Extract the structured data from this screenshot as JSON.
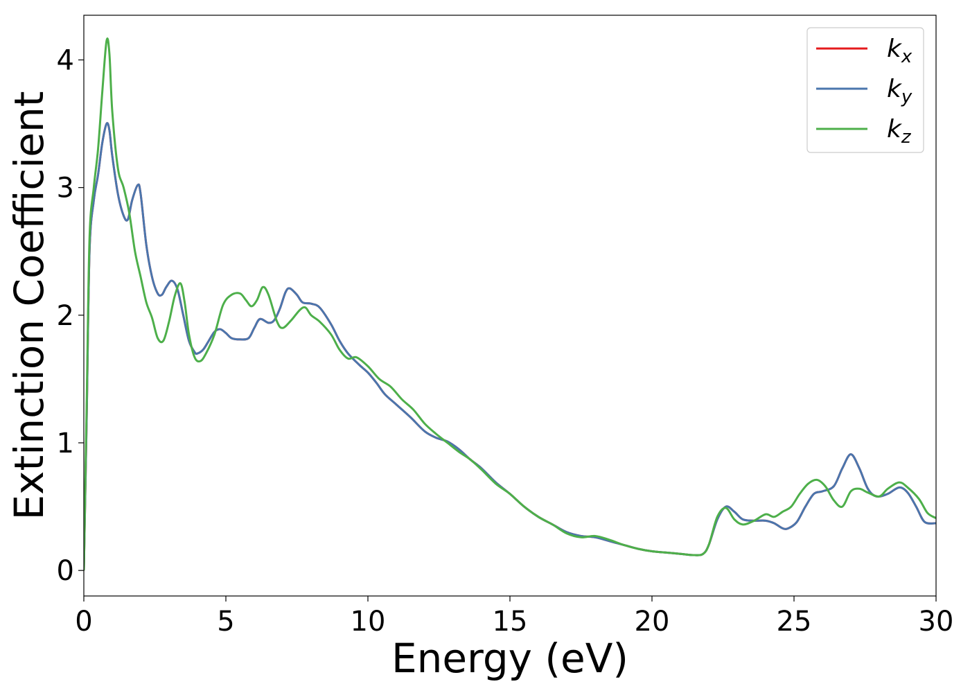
{
  "chart_data": {
    "type": "line",
    "title": "",
    "xlabel": "Energy (eV)",
    "ylabel": "Extinction Coefficient",
    "xlim": [
      0,
      30
    ],
    "ylim": [
      -0.2,
      4.35
    ],
    "xticks": [
      0,
      5,
      10,
      15,
      20,
      25,
      30
    ],
    "yticks": [
      0,
      1,
      2,
      3,
      4
    ],
    "grid": false,
    "legend_position": "top-right",
    "series": [
      {
        "name": "k",
        "subscript": "x",
        "color": "#e41a1c",
        "points": [
          [
            0,
            0
          ],
          [
            0.1,
            1.2
          ],
          [
            0.2,
            2.5
          ],
          [
            0.35,
            2.9
          ],
          [
            0.5,
            3.1
          ],
          [
            0.65,
            3.35
          ],
          [
            0.8,
            3.5
          ],
          [
            0.9,
            3.45
          ],
          [
            1.0,
            3.25
          ],
          [
            1.2,
            2.95
          ],
          [
            1.4,
            2.78
          ],
          [
            1.55,
            2.75
          ],
          [
            1.7,
            2.9
          ],
          [
            1.9,
            3.02
          ],
          [
            2.0,
            2.95
          ],
          [
            2.2,
            2.55
          ],
          [
            2.4,
            2.3
          ],
          [
            2.6,
            2.17
          ],
          [
            2.75,
            2.16
          ],
          [
            2.9,
            2.22
          ],
          [
            3.1,
            2.27
          ],
          [
            3.3,
            2.2
          ],
          [
            3.5,
            2.0
          ],
          [
            3.7,
            1.8
          ],
          [
            3.9,
            1.71
          ],
          [
            4.0,
            1.7
          ],
          [
            4.2,
            1.73
          ],
          [
            4.4,
            1.8
          ],
          [
            4.6,
            1.87
          ],
          [
            4.8,
            1.89
          ],
          [
            5.0,
            1.86
          ],
          [
            5.2,
            1.82
          ],
          [
            5.5,
            1.81
          ],
          [
            5.8,
            1.82
          ],
          [
            6.0,
            1.9
          ],
          [
            6.2,
            1.97
          ],
          [
            6.5,
            1.94
          ],
          [
            6.7,
            1.96
          ],
          [
            6.9,
            2.05
          ],
          [
            7.1,
            2.18
          ],
          [
            7.25,
            2.21
          ],
          [
            7.5,
            2.16
          ],
          [
            7.7,
            2.1
          ],
          [
            8.0,
            2.09
          ],
          [
            8.3,
            2.06
          ],
          [
            8.7,
            1.93
          ],
          [
            9.0,
            1.8
          ],
          [
            9.3,
            1.7
          ],
          [
            9.7,
            1.61
          ],
          [
            10.0,
            1.55
          ],
          [
            10.3,
            1.47
          ],
          [
            10.6,
            1.38
          ],
          [
            11.0,
            1.3
          ],
          [
            11.5,
            1.2
          ],
          [
            12.0,
            1.09
          ],
          [
            12.4,
            1.04
          ],
          [
            12.8,
            1.01
          ],
          [
            13.2,
            0.95
          ],
          [
            13.6,
            0.87
          ],
          [
            14.0,
            0.8
          ],
          [
            14.5,
            0.69
          ],
          [
            15.0,
            0.6
          ],
          [
            15.5,
            0.5
          ],
          [
            16.0,
            0.42
          ],
          [
            16.5,
            0.36
          ],
          [
            17.0,
            0.3
          ],
          [
            17.5,
            0.27
          ],
          [
            18.0,
            0.26
          ],
          [
            18.5,
            0.23
          ],
          [
            19.0,
            0.2
          ],
          [
            19.5,
            0.17
          ],
          [
            20.0,
            0.15
          ],
          [
            20.5,
            0.14
          ],
          [
            21.0,
            0.13
          ],
          [
            21.5,
            0.12
          ],
          [
            21.8,
            0.13
          ],
          [
            22.0,
            0.2
          ],
          [
            22.3,
            0.4
          ],
          [
            22.6,
            0.5
          ],
          [
            22.9,
            0.46
          ],
          [
            23.2,
            0.4
          ],
          [
            23.6,
            0.39
          ],
          [
            24.0,
            0.39
          ],
          [
            24.3,
            0.37
          ],
          [
            24.6,
            0.33
          ],
          [
            24.8,
            0.33
          ],
          [
            25.1,
            0.38
          ],
          [
            25.4,
            0.5
          ],
          [
            25.7,
            0.6
          ],
          [
            26.0,
            0.62
          ],
          [
            26.4,
            0.66
          ],
          [
            26.7,
            0.8
          ],
          [
            27.0,
            0.91
          ],
          [
            27.3,
            0.8
          ],
          [
            27.6,
            0.64
          ],
          [
            27.9,
            0.58
          ],
          [
            28.3,
            0.6
          ],
          [
            28.7,
            0.65
          ],
          [
            29.0,
            0.61
          ],
          [
            29.3,
            0.5
          ],
          [
            29.6,
            0.38
          ],
          [
            30.0,
            0.37
          ]
        ]
      },
      {
        "name": "k",
        "subscript": "y",
        "color": "#4a76ad",
        "points": [
          [
            0,
            0
          ],
          [
            0.1,
            1.2
          ],
          [
            0.2,
            2.5
          ],
          [
            0.35,
            2.9
          ],
          [
            0.5,
            3.1
          ],
          [
            0.65,
            3.35
          ],
          [
            0.8,
            3.5
          ],
          [
            0.9,
            3.45
          ],
          [
            1.0,
            3.25
          ],
          [
            1.2,
            2.95
          ],
          [
            1.4,
            2.78
          ],
          [
            1.55,
            2.75
          ],
          [
            1.7,
            2.9
          ],
          [
            1.9,
            3.02
          ],
          [
            2.0,
            2.95
          ],
          [
            2.2,
            2.55
          ],
          [
            2.4,
            2.3
          ],
          [
            2.6,
            2.17
          ],
          [
            2.75,
            2.16
          ],
          [
            2.9,
            2.22
          ],
          [
            3.1,
            2.27
          ],
          [
            3.3,
            2.2
          ],
          [
            3.5,
            2.0
          ],
          [
            3.7,
            1.8
          ],
          [
            3.9,
            1.71
          ],
          [
            4.0,
            1.7
          ],
          [
            4.2,
            1.73
          ],
          [
            4.4,
            1.8
          ],
          [
            4.6,
            1.87
          ],
          [
            4.8,
            1.89
          ],
          [
            5.0,
            1.86
          ],
          [
            5.2,
            1.82
          ],
          [
            5.5,
            1.81
          ],
          [
            5.8,
            1.82
          ],
          [
            6.0,
            1.9
          ],
          [
            6.2,
            1.97
          ],
          [
            6.5,
            1.94
          ],
          [
            6.7,
            1.96
          ],
          [
            6.9,
            2.05
          ],
          [
            7.1,
            2.18
          ],
          [
            7.25,
            2.21
          ],
          [
            7.5,
            2.16
          ],
          [
            7.7,
            2.1
          ],
          [
            8.0,
            2.09
          ],
          [
            8.3,
            2.06
          ],
          [
            8.7,
            1.93
          ],
          [
            9.0,
            1.8
          ],
          [
            9.3,
            1.7
          ],
          [
            9.7,
            1.61
          ],
          [
            10.0,
            1.55
          ],
          [
            10.3,
            1.47
          ],
          [
            10.6,
            1.38
          ],
          [
            11.0,
            1.3
          ],
          [
            11.5,
            1.2
          ],
          [
            12.0,
            1.09
          ],
          [
            12.4,
            1.04
          ],
          [
            12.8,
            1.01
          ],
          [
            13.2,
            0.95
          ],
          [
            13.6,
            0.87
          ],
          [
            14.0,
            0.8
          ],
          [
            14.5,
            0.69
          ],
          [
            15.0,
            0.6
          ],
          [
            15.5,
            0.5
          ],
          [
            16.0,
            0.42
          ],
          [
            16.5,
            0.36
          ],
          [
            17.0,
            0.3
          ],
          [
            17.5,
            0.27
          ],
          [
            18.0,
            0.26
          ],
          [
            18.5,
            0.23
          ],
          [
            19.0,
            0.2
          ],
          [
            19.5,
            0.17
          ],
          [
            20.0,
            0.15
          ],
          [
            20.5,
            0.14
          ],
          [
            21.0,
            0.13
          ],
          [
            21.5,
            0.12
          ],
          [
            21.8,
            0.13
          ],
          [
            22.0,
            0.2
          ],
          [
            22.3,
            0.4
          ],
          [
            22.6,
            0.5
          ],
          [
            22.9,
            0.46
          ],
          [
            23.2,
            0.4
          ],
          [
            23.6,
            0.39
          ],
          [
            24.0,
            0.39
          ],
          [
            24.3,
            0.37
          ],
          [
            24.6,
            0.33
          ],
          [
            24.8,
            0.33
          ],
          [
            25.1,
            0.38
          ],
          [
            25.4,
            0.5
          ],
          [
            25.7,
            0.6
          ],
          [
            26.0,
            0.62
          ],
          [
            26.4,
            0.66
          ],
          [
            26.7,
            0.8
          ],
          [
            27.0,
            0.91
          ],
          [
            27.3,
            0.8
          ],
          [
            27.6,
            0.64
          ],
          [
            27.9,
            0.58
          ],
          [
            28.3,
            0.6
          ],
          [
            28.7,
            0.65
          ],
          [
            29.0,
            0.61
          ],
          [
            29.3,
            0.5
          ],
          [
            29.6,
            0.38
          ],
          [
            30.0,
            0.37
          ]
        ]
      },
      {
        "name": "k",
        "subscript": "z",
        "color": "#4daf4a",
        "points": [
          [
            0,
            0
          ],
          [
            0.1,
            1.3
          ],
          [
            0.2,
            2.6
          ],
          [
            0.35,
            3.0
          ],
          [
            0.5,
            3.3
          ],
          [
            0.65,
            3.75
          ],
          [
            0.8,
            4.15
          ],
          [
            0.9,
            4.05
          ],
          [
            1.0,
            3.6
          ],
          [
            1.2,
            3.15
          ],
          [
            1.4,
            3.0
          ],
          [
            1.6,
            2.8
          ],
          [
            1.8,
            2.5
          ],
          [
            2.0,
            2.3
          ],
          [
            2.2,
            2.1
          ],
          [
            2.4,
            1.98
          ],
          [
            2.6,
            1.82
          ],
          [
            2.8,
            1.8
          ],
          [
            3.0,
            1.95
          ],
          [
            3.2,
            2.15
          ],
          [
            3.4,
            2.25
          ],
          [
            3.55,
            2.1
          ],
          [
            3.7,
            1.85
          ],
          [
            3.9,
            1.67
          ],
          [
            4.1,
            1.64
          ],
          [
            4.3,
            1.7
          ],
          [
            4.6,
            1.85
          ],
          [
            4.9,
            2.08
          ],
          [
            5.2,
            2.16
          ],
          [
            5.5,
            2.17
          ],
          [
            5.7,
            2.12
          ],
          [
            5.9,
            2.07
          ],
          [
            6.1,
            2.12
          ],
          [
            6.3,
            2.22
          ],
          [
            6.5,
            2.16
          ],
          [
            6.8,
            1.95
          ],
          [
            7.0,
            1.9
          ],
          [
            7.3,
            1.96
          ],
          [
            7.6,
            2.04
          ],
          [
            7.8,
            2.06
          ],
          [
            8.0,
            2.0
          ],
          [
            8.3,
            1.95
          ],
          [
            8.7,
            1.85
          ],
          [
            9.0,
            1.73
          ],
          [
            9.3,
            1.66
          ],
          [
            9.6,
            1.67
          ],
          [
            10.0,
            1.6
          ],
          [
            10.4,
            1.5
          ],
          [
            10.8,
            1.44
          ],
          [
            11.2,
            1.34
          ],
          [
            11.6,
            1.26
          ],
          [
            12.0,
            1.15
          ],
          [
            12.4,
            1.07
          ],
          [
            12.8,
            1.0
          ],
          [
            13.2,
            0.93
          ],
          [
            13.6,
            0.87
          ],
          [
            14.0,
            0.79
          ],
          [
            14.5,
            0.68
          ],
          [
            15.0,
            0.6
          ],
          [
            15.5,
            0.5
          ],
          [
            16.0,
            0.42
          ],
          [
            16.5,
            0.36
          ],
          [
            17.0,
            0.29
          ],
          [
            17.5,
            0.26
          ],
          [
            18.0,
            0.27
          ],
          [
            18.5,
            0.24
          ],
          [
            19.0,
            0.2
          ],
          [
            19.5,
            0.17
          ],
          [
            20.0,
            0.15
          ],
          [
            20.5,
            0.14
          ],
          [
            21.0,
            0.13
          ],
          [
            21.5,
            0.12
          ],
          [
            21.8,
            0.13
          ],
          [
            22.0,
            0.2
          ],
          [
            22.3,
            0.42
          ],
          [
            22.6,
            0.49
          ],
          [
            22.9,
            0.4
          ],
          [
            23.2,
            0.36
          ],
          [
            23.6,
            0.39
          ],
          [
            24.0,
            0.44
          ],
          [
            24.3,
            0.42
          ],
          [
            24.6,
            0.46
          ],
          [
            24.9,
            0.5
          ],
          [
            25.2,
            0.6
          ],
          [
            25.5,
            0.68
          ],
          [
            25.8,
            0.71
          ],
          [
            26.1,
            0.66
          ],
          [
            26.4,
            0.55
          ],
          [
            26.7,
            0.5
          ],
          [
            27.0,
            0.62
          ],
          [
            27.3,
            0.64
          ],
          [
            27.6,
            0.61
          ],
          [
            28.0,
            0.58
          ],
          [
            28.3,
            0.64
          ],
          [
            28.7,
            0.69
          ],
          [
            29.0,
            0.65
          ],
          [
            29.4,
            0.56
          ],
          [
            29.7,
            0.45
          ],
          [
            30.0,
            0.41
          ]
        ]
      }
    ]
  }
}
